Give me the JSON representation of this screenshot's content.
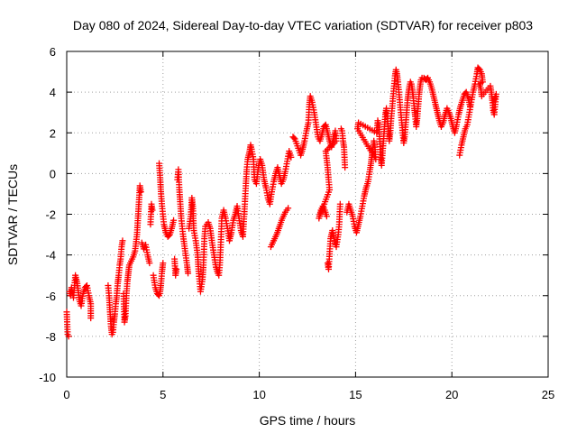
{
  "chart_data": {
    "type": "scatter",
    "title": "Day 080 of 2024, Sidereal Day-to-day VTEC variation (SDTVAR) for receiver p803",
    "xlabel": "GPS time / hours",
    "ylabel": "SDTVAR / TECUs",
    "xlim": [
      0,
      25
    ],
    "ylim": [
      -10,
      6
    ],
    "xticks": [
      "0",
      "5",
      "10",
      "15",
      "20",
      "25"
    ],
    "yticks": [
      "6",
      "4",
      "2",
      "0",
      "-2",
      "-4",
      "-6",
      "-8",
      "-10"
    ],
    "grid": true,
    "marker": "plus",
    "color": "#ff0000",
    "series": [
      {
        "points": [
          [
            0.0,
            -6.8
          ],
          [
            0.05,
            -7.9
          ],
          [
            0.1,
            -8.0
          ],
          [
            0.15,
            -5.8
          ],
          [
            0.2,
            -6.0
          ],
          [
            0.25,
            -5.6
          ],
          [
            0.35,
            -6.1
          ],
          [
            0.45,
            -5.0
          ],
          [
            0.55,
            -5.4
          ],
          [
            0.65,
            -6.2
          ],
          [
            0.75,
            -6.5
          ],
          [
            0.85,
            -5.9
          ],
          [
            0.95,
            -5.6
          ],
          [
            1.05,
            -5.5
          ],
          [
            1.15,
            -6.0
          ],
          [
            1.25,
            -6.4
          ],
          [
            1.25,
            -7.1
          ],
          [
            2.15,
            -5.5
          ],
          [
            2.2,
            -6.0
          ],
          [
            2.25,
            -6.8
          ],
          [
            2.3,
            -7.5
          ],
          [
            2.35,
            -7.9
          ],
          [
            2.4,
            -7.8
          ],
          [
            2.45,
            -7.3
          ],
          [
            2.5,
            -6.9
          ],
          [
            2.55,
            -6.4
          ],
          [
            2.6,
            -6.0
          ],
          [
            2.65,
            -5.4
          ],
          [
            2.7,
            -5.0
          ],
          [
            2.75,
            -4.5
          ],
          [
            2.8,
            -4.2
          ],
          [
            2.85,
            -3.6
          ],
          [
            2.9,
            -3.3
          ],
          [
            2.95,
            -5.9
          ],
          [
            3.0,
            -7.3
          ],
          [
            3.05,
            -7.0
          ],
          [
            3.1,
            -6.0
          ],
          [
            3.15,
            -5.3
          ],
          [
            3.2,
            -4.9
          ],
          [
            3.25,
            -4.5
          ],
          [
            3.35,
            -4.3
          ],
          [
            3.45,
            -4.1
          ],
          [
            3.55,
            -3.8
          ],
          [
            3.65,
            -3.0
          ],
          [
            3.7,
            -2.2
          ],
          [
            3.75,
            -1.4
          ],
          [
            3.8,
            -0.6
          ],
          [
            3.85,
            -0.9
          ],
          [
            3.9,
            -3.4
          ],
          [
            4.0,
            -3.7
          ],
          [
            4.1,
            -3.5
          ],
          [
            4.2,
            -4.0
          ],
          [
            4.3,
            -4.4
          ],
          [
            4.35,
            -2.5
          ],
          [
            4.4,
            -1.5
          ],
          [
            4.45,
            -1.8
          ],
          [
            4.5,
            -5.0
          ],
          [
            4.6,
            -5.6
          ],
          [
            4.7,
            -5.9
          ],
          [
            4.8,
            -6.0
          ],
          [
            4.85,
            -5.8
          ],
          [
            4.9,
            -5.4
          ],
          [
            4.95,
            -4.8
          ],
          [
            5.0,
            -4.4
          ],
          [
            4.8,
            0.5
          ],
          [
            4.85,
            -0.2
          ],
          [
            4.9,
            -1.0
          ],
          [
            4.95,
            -1.6
          ],
          [
            5.05,
            -2.5
          ],
          [
            5.15,
            -2.9
          ],
          [
            5.25,
            -3.1
          ],
          [
            5.35,
            -3.0
          ],
          [
            5.45,
            -2.7
          ],
          [
            5.55,
            -2.3
          ],
          [
            5.6,
            -4.2
          ],
          [
            5.65,
            -5.0
          ],
          [
            5.7,
            -4.7
          ],
          [
            5.75,
            -0.3
          ],
          [
            5.8,
            0.2
          ],
          [
            5.85,
            -0.8
          ],
          [
            5.9,
            -1.5
          ],
          [
            5.95,
            -2.2
          ],
          [
            6.05,
            -3.1
          ],
          [
            6.15,
            -3.8
          ],
          [
            6.25,
            -4.5
          ],
          [
            6.3,
            -4.9
          ],
          [
            6.35,
            -2.7
          ],
          [
            6.45,
            -2.0
          ],
          [
            6.5,
            -1.2
          ],
          [
            6.55,
            -1.6
          ],
          [
            6.6,
            -2.8
          ],
          [
            6.7,
            -3.3
          ],
          [
            6.8,
            -4.0
          ],
          [
            6.85,
            -4.8
          ],
          [
            6.9,
            -5.3
          ],
          [
            6.95,
            -5.8
          ],
          [
            7.05,
            -5.2
          ],
          [
            7.1,
            -4.5
          ],
          [
            7.15,
            -3.2
          ],
          [
            7.2,
            -2.6
          ],
          [
            7.35,
            -2.4
          ],
          [
            7.45,
            -2.7
          ],
          [
            7.55,
            -3.4
          ],
          [
            7.65,
            -4.0
          ],
          [
            7.75,
            -4.6
          ],
          [
            7.85,
            -4.9
          ],
          [
            7.9,
            -5.0
          ],
          [
            7.95,
            -4.5
          ],
          [
            8.0,
            -3.5
          ],
          [
            8.05,
            -2.2
          ],
          [
            8.15,
            -1.8
          ],
          [
            8.25,
            -2.2
          ],
          [
            8.35,
            -2.7
          ],
          [
            8.45,
            -3.3
          ],
          [
            8.55,
            -2.9
          ],
          [
            8.65,
            -2.3
          ],
          [
            8.75,
            -2.0
          ],
          [
            8.85,
            -1.6
          ],
          [
            8.95,
            -2.2
          ],
          [
            9.05,
            -2.8
          ],
          [
            9.15,
            -3.1
          ],
          [
            9.25,
            -1.5
          ],
          [
            9.3,
            -0.6
          ],
          [
            9.35,
            0.2
          ],
          [
            9.4,
            0.7
          ],
          [
            9.45,
            0.9
          ],
          [
            9.5,
            1.1
          ],
          [
            9.55,
            1.4
          ],
          [
            9.6,
            1.2
          ],
          [
            9.7,
            0.7
          ],
          [
            9.75,
            -0.3
          ],
          [
            9.85,
            -0.5
          ],
          [
            9.95,
            0.3
          ],
          [
            10.05,
            0.7
          ],
          [
            10.15,
            0.4
          ],
          [
            10.25,
            -0.3
          ],
          [
            10.35,
            -0.7
          ],
          [
            10.45,
            -1.2
          ],
          [
            10.55,
            -1.5
          ],
          [
            10.65,
            -0.9
          ],
          [
            10.75,
            -0.4
          ],
          [
            10.85,
            0.0
          ],
          [
            10.95,
            0.3
          ],
          [
            11.05,
            -0.1
          ],
          [
            11.15,
            -0.5
          ],
          [
            11.25,
            -0.3
          ],
          [
            11.35,
            0.1
          ],
          [
            11.45,
            0.6
          ],
          [
            11.55,
            1.1
          ],
          [
            11.65,
            0.8
          ],
          [
            10.6,
            -3.6
          ],
          [
            10.75,
            -3.3
          ],
          [
            10.9,
            -3.0
          ],
          [
            11.05,
            -2.6
          ],
          [
            11.2,
            -2.2
          ],
          [
            11.35,
            -1.9
          ],
          [
            11.5,
            -1.7
          ],
          [
            11.75,
            1.8
          ],
          [
            11.85,
            1.7
          ],
          [
            12.15,
            0.9
          ],
          [
            12.25,
            1.2
          ],
          [
            12.35,
            1.6
          ],
          [
            12.45,
            2.1
          ],
          [
            12.55,
            2.5
          ],
          [
            12.6,
            3.4
          ],
          [
            12.65,
            3.8
          ],
          [
            12.75,
            3.5
          ],
          [
            12.85,
            3.0
          ],
          [
            12.95,
            2.4
          ],
          [
            13.05,
            1.8
          ],
          [
            13.15,
            1.6
          ],
          [
            13.25,
            1.9
          ],
          [
            13.35,
            2.3
          ],
          [
            13.45,
            2.4
          ],
          [
            13.55,
            2.0
          ],
          [
            13.65,
            1.6
          ],
          [
            13.75,
            1.3
          ],
          [
            13.85,
            1.7
          ],
          [
            13.95,
            2.1
          ],
          [
            14.0,
            1.6
          ],
          [
            13.45,
            1.1
          ],
          [
            13.55,
            0.3
          ],
          [
            13.6,
            -0.3
          ],
          [
            13.65,
            -0.8
          ],
          [
            13.1,
            -2.2
          ],
          [
            13.2,
            -1.8
          ],
          [
            13.3,
            -1.6
          ],
          [
            13.4,
            -1.8
          ],
          [
            13.5,
            -2.1
          ],
          [
            13.55,
            -4.4
          ],
          [
            13.6,
            -4.7
          ],
          [
            13.7,
            -3.2
          ],
          [
            13.8,
            -2.8
          ],
          [
            13.9,
            -3.3
          ],
          [
            14.0,
            -3.6
          ],
          [
            14.1,
            -3.0
          ],
          [
            14.15,
            -2.5
          ],
          [
            14.2,
            -1.5
          ],
          [
            14.25,
            2.2
          ],
          [
            14.3,
            2.1
          ],
          [
            14.35,
            1.6
          ],
          [
            14.4,
            1.3
          ],
          [
            14.45,
            0.3
          ],
          [
            14.55,
            -1.9
          ],
          [
            14.65,
            -1.5
          ],
          [
            14.75,
            -1.8
          ],
          [
            14.85,
            -2.1
          ],
          [
            14.95,
            -2.6
          ],
          [
            15.05,
            -2.9
          ],
          [
            15.15,
            -2.5
          ],
          [
            15.25,
            -2.1
          ],
          [
            15.35,
            -1.6
          ],
          [
            15.45,
            -1.1
          ],
          [
            15.55,
            -0.7
          ],
          [
            15.65,
            -0.4
          ],
          [
            15.75,
            0.2
          ],
          [
            15.8,
            0.5
          ],
          [
            15.85,
            0.9
          ],
          [
            15.9,
            1.2
          ],
          [
            15.95,
            1.6
          ],
          [
            16.0,
            1.3
          ],
          [
            16.05,
            0.7
          ],
          [
            15.1,
            2.2
          ],
          [
            15.15,
            2.5
          ],
          [
            16.1,
            2.0
          ],
          [
            16.15,
            2.6
          ],
          [
            16.2,
            2.4
          ],
          [
            16.25,
            1.7
          ],
          [
            16.3,
            0.8
          ],
          [
            16.35,
            0.4
          ],
          [
            16.4,
            1.0
          ],
          [
            16.45,
            1.6
          ],
          [
            16.5,
            2.3
          ],
          [
            16.55,
            2.9
          ],
          [
            16.6,
            3.2
          ],
          [
            16.65,
            2.7
          ],
          [
            16.7,
            2.2
          ],
          [
            16.75,
            1.6
          ],
          [
            16.8,
            2.0
          ],
          [
            16.85,
            2.7
          ],
          [
            16.9,
            3.2
          ],
          [
            16.95,
            3.8
          ],
          [
            17.0,
            4.3
          ],
          [
            17.05,
            4.8
          ],
          [
            17.1,
            5.1
          ],
          [
            17.15,
            4.9
          ],
          [
            17.2,
            4.5
          ],
          [
            17.25,
            4.0
          ],
          [
            17.3,
            3.5
          ],
          [
            17.35,
            3.0
          ],
          [
            17.4,
            2.5
          ],
          [
            17.45,
            2.0
          ],
          [
            17.5,
            1.5
          ],
          [
            17.55,
            1.8
          ],
          [
            17.6,
            2.4
          ],
          [
            17.65,
            3.0
          ],
          [
            17.7,
            3.6
          ],
          [
            17.75,
            4.0
          ],
          [
            17.8,
            4.3
          ],
          [
            17.85,
            4.5
          ],
          [
            17.9,
            4.4
          ],
          [
            17.95,
            4.1
          ],
          [
            18.0,
            3.7
          ],
          [
            18.05,
            3.2
          ],
          [
            18.1,
            2.8
          ],
          [
            18.15,
            2.3
          ],
          [
            18.2,
            2.7
          ],
          [
            18.25,
            3.3
          ],
          [
            18.3,
            3.9
          ],
          [
            18.35,
            4.3
          ],
          [
            18.4,
            4.6
          ],
          [
            18.45,
            4.7
          ],
          [
            18.55,
            4.7
          ],
          [
            18.65,
            4.6
          ],
          [
            18.75,
            4.7
          ],
          [
            18.85,
            4.5
          ],
          [
            18.95,
            4.2
          ],
          [
            19.05,
            3.8
          ],
          [
            19.15,
            3.4
          ],
          [
            19.25,
            3.0
          ],
          [
            19.35,
            2.6
          ],
          [
            19.45,
            2.3
          ],
          [
            19.55,
            2.5
          ],
          [
            19.65,
            2.9
          ],
          [
            19.75,
            3.2
          ],
          [
            19.85,
            3.0
          ],
          [
            19.95,
            2.7
          ],
          [
            20.05,
            2.3
          ],
          [
            20.15,
            2.0
          ],
          [
            20.25,
            2.4
          ],
          [
            20.35,
            2.9
          ],
          [
            20.45,
            3.3
          ],
          [
            20.55,
            3.6
          ],
          [
            20.65,
            3.9
          ],
          [
            20.75,
            4.0
          ],
          [
            20.85,
            3.7
          ],
          [
            20.95,
            3.3
          ],
          [
            20.4,
            0.9
          ],
          [
            20.5,
            1.4
          ],
          [
            20.6,
            1.8
          ],
          [
            20.7,
            2.2
          ],
          [
            20.8,
            2.4
          ],
          [
            21.1,
            4.0
          ],
          [
            21.2,
            4.4
          ],
          [
            21.3,
            4.9
          ],
          [
            21.35,
            5.2
          ],
          [
            21.45,
            5.1
          ],
          [
            21.55,
            4.9
          ],
          [
            21.6,
            4.5
          ],
          [
            21.4,
            4.4
          ],
          [
            21.5,
            4.2
          ],
          [
            21.55,
            3.8
          ],
          [
            22.0,
            4.3
          ],
          [
            22.05,
            4.0
          ],
          [
            22.1,
            3.6
          ],
          [
            22.15,
            3.1
          ],
          [
            22.2,
            2.9
          ],
          [
            22.25,
            3.4
          ],
          [
            22.3,
            3.9
          ],
          [
            22.15,
            3.5
          ]
        ]
      }
    ]
  }
}
